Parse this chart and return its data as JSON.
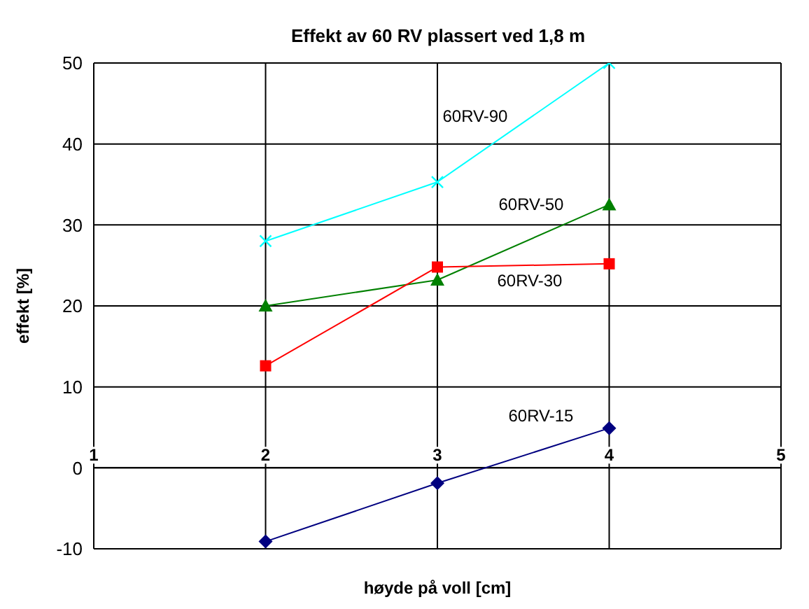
{
  "chart_data": {
    "type": "line",
    "title": "Effekt av 60 RV plassert ved 1,8 m",
    "xlabel": "høyde på voll [cm]",
    "ylabel": "effekt [%]",
    "x": [
      2,
      3,
      4
    ],
    "xlim": [
      1,
      5
    ],
    "xticks": [
      1,
      2,
      3,
      4,
      5
    ],
    "ylim": [
      -10,
      50
    ],
    "yticks": [
      -10,
      0,
      10,
      20,
      30,
      40,
      50
    ],
    "grid": true,
    "series": [
      {
        "name": "60RV-90",
        "color": "#00ffff",
        "marker": "cross",
        "values": [
          28.0,
          35.3,
          50.0
        ]
      },
      {
        "name": "60RV-50",
        "color": "#008000",
        "marker": "triangle",
        "values": [
          20.0,
          23.2,
          32.5
        ]
      },
      {
        "name": "60RV-30",
        "color": "#ff0000",
        "marker": "square",
        "values": [
          12.6,
          24.8,
          25.2
        ]
      },
      {
        "name": "60RV-15",
        "color": "#000080",
        "marker": "diamond",
        "values": [
          -9.1,
          -1.9,
          4.9
        ]
      }
    ]
  }
}
